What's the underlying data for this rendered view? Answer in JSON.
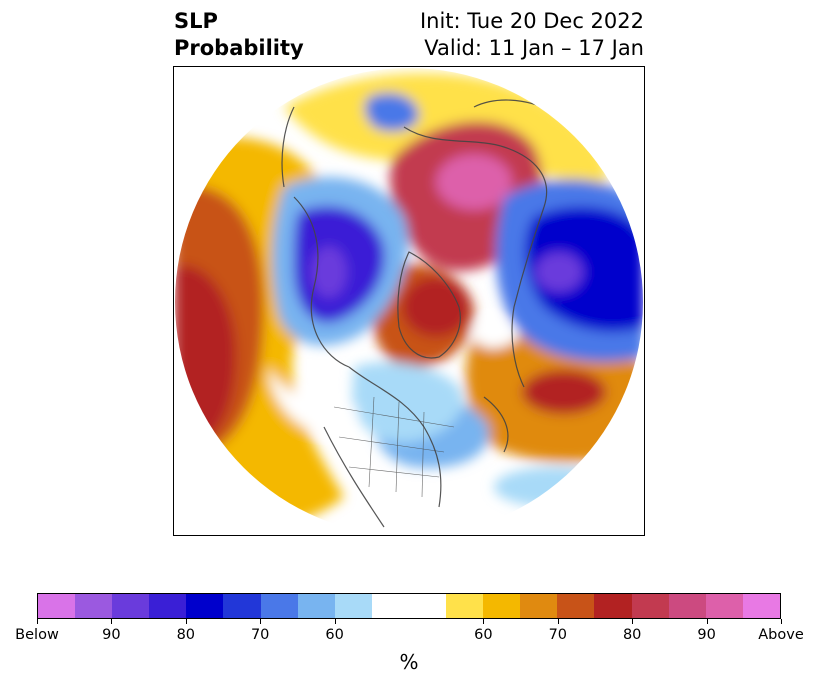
{
  "title": {
    "left_line1": "SLP",
    "left_line2": "Probability",
    "right_line1": "Init: Tue 20 Dec 2022",
    "right_line2": "Valid: 11 Jan – 17 Jan"
  },
  "map": {
    "projection": "north-polar-stereographic",
    "coastline_color": "#444444",
    "features": [
      {
        "region": "Siberia / Arctic",
        "category": "Above",
        "level": "90-Above",
        "color": "#d45fa8"
      },
      {
        "region": "Western Canada / Alaska",
        "category": "Below",
        "level": "80-90",
        "color": "#3320d0"
      },
      {
        "region": "Northwest Pacific / Kamchatka",
        "category": "Below",
        "level": "80-90",
        "color": "#0000c8"
      },
      {
        "region": "Greenland / Baffin",
        "category": "Above",
        "level": "80",
        "color": "#b22222"
      },
      {
        "region": "North Atlantic",
        "category": "Above",
        "level": "80",
        "color": "#b22222"
      },
      {
        "region": "Central North Pacific (left edge)",
        "category": "Above",
        "level": "80",
        "color": "#b22222"
      },
      {
        "region": "Eastern United States",
        "category": "Below",
        "level": "60",
        "color": "#78b4f0"
      }
    ]
  },
  "colorbar": {
    "label": "%",
    "colors": [
      "#d973e8",
      "#9b59e0",
      "#6a3bdc",
      "#3a1fd6",
      "#0000cc",
      "#2237d8",
      "#4a78e8",
      "#78b4f0",
      "#a8daf8",
      "#ffffff",
      "#ffffff",
      "#ffe14a",
      "#f4b800",
      "#e08a10",
      "#c85318",
      "#b22222",
      "#c23a50",
      "#cc4a80",
      "#dd60aa",
      "#e879e4"
    ],
    "ticks": [
      "Below",
      "90",
      "80",
      "70",
      "60",
      "60",
      "70",
      "80",
      "90",
      "Above"
    ]
  }
}
